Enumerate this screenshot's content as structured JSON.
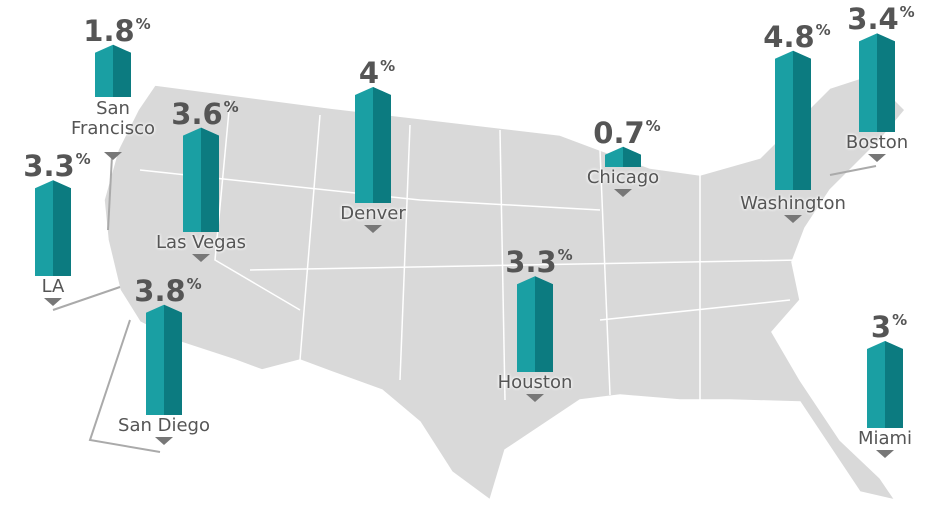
{
  "map": {
    "unit": "%",
    "cities": [
      {
        "name": "San Francisco",
        "value": 1.8
      },
      {
        "name": "LA",
        "value": 3.3
      },
      {
        "name": "Las Vegas",
        "value": 3.6
      },
      {
        "name": "San Diego",
        "value": 3.8
      },
      {
        "name": "Denver",
        "value": 4.0
      },
      {
        "name": "Chicago",
        "value": 0.7
      },
      {
        "name": "Houston",
        "value": 3.3
      },
      {
        "name": "Washington",
        "value": 4.8
      },
      {
        "name": "Boston",
        "value": 3.4
      },
      {
        "name": "Miami",
        "value": 3.0
      }
    ]
  }
}
